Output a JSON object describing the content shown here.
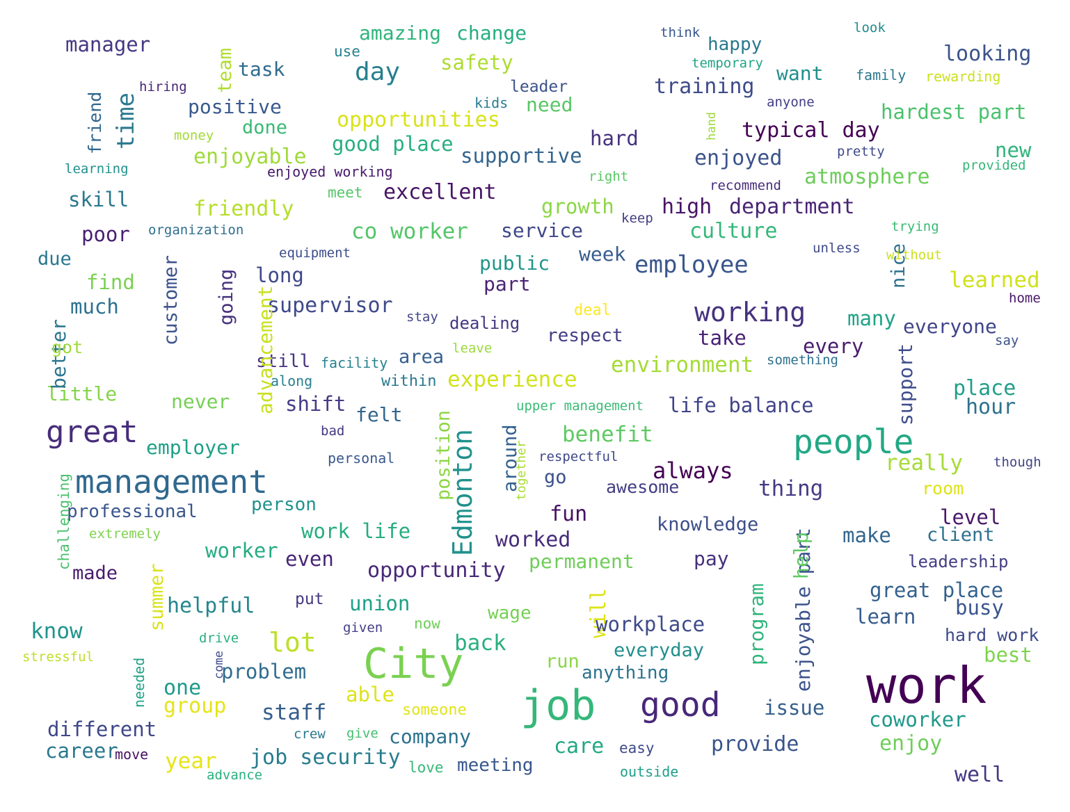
{
  "words": [
    {
      "text": "work",
      "color": "#440154"
    },
    {
      "text": "job",
      "color": "#35b779"
    },
    {
      "text": "City",
      "color": "#7ad151"
    },
    {
      "text": "good",
      "color": "#482878"
    },
    {
      "text": "people",
      "color": "#22a884"
    },
    {
      "text": "management",
      "color": "#31688e"
    },
    {
      "text": "great",
      "color": "#472d7b"
    },
    {
      "text": "Edmonton",
      "color": "#21918c"
    },
    {
      "text": "working",
      "color": "#46327e"
    },
    {
      "text": "employee",
      "color": "#39568c"
    },
    {
      "text": "lot",
      "color": "#bddf26"
    },
    {
      "text": "day",
      "color": "#277f8e"
    },
    {
      "text": "time",
      "color": "#2a788e"
    },
    {
      "text": "always",
      "color": "#440154"
    },
    {
      "text": "experience",
      "color": "#d2e21b"
    },
    {
      "text": "environment",
      "color": "#a5db36"
    },
    {
      "text": "supervisor",
      "color": "#3e4989"
    },
    {
      "text": "benefit",
      "color": "#5ec962"
    },
    {
      "text": "co worker",
      "color": "#54c568"
    },
    {
      "text": "opportunity",
      "color": "#482878"
    },
    {
      "text": "enjoyable part",
      "color": "#3b528b"
    },
    {
      "text": "amazing",
      "color": "#2fb47c"
    },
    {
      "text": "change",
      "color": "#26ad81"
    },
    {
      "text": "safety",
      "color": "#addc30"
    },
    {
      "text": "manager",
      "color": "#443983"
    },
    {
      "text": "opportunities",
      "color": "#d8e219"
    },
    {
      "text": "good place",
      "color": "#28ae80"
    },
    {
      "text": "training",
      "color": "#3e4a89"
    },
    {
      "text": "typical day",
      "color": "#440154"
    },
    {
      "text": "hardest part",
      "color": "#4ac16d"
    },
    {
      "text": "looking",
      "color": "#3b528b"
    },
    {
      "text": "atmosphere",
      "color": "#6ccd5a"
    },
    {
      "text": "learned",
      "color": "#d0e11c"
    },
    {
      "text": "high",
      "color": "#481467"
    },
    {
      "text": "department",
      "color": "#482475"
    },
    {
      "text": "culture",
      "color": "#35b779"
    },
    {
      "text": "excellent",
      "color": "#471365"
    },
    {
      "text": "friendly",
      "color": "#b5de2b"
    },
    {
      "text": "enjoyable",
      "color": "#9fda3a"
    },
    {
      "text": "positive",
      "color": "#38598c"
    },
    {
      "text": "supportive",
      "color": "#32648e"
    },
    {
      "text": "enjoyed",
      "color": "#3b528b"
    },
    {
      "text": "public",
      "color": "#1f958b"
    },
    {
      "text": "service",
      "color": "#3f4788"
    },
    {
      "text": "skill",
      "color": "#2a768e"
    },
    {
      "text": "life balance",
      "color": "#414487"
    },
    {
      "text": "place",
      "color": "#1f9e89"
    },
    {
      "text": "hour",
      "color": "#2c728e"
    },
    {
      "text": "support",
      "color": "#3e4c8a"
    },
    {
      "text": "many",
      "color": "#20a386"
    },
    {
      "text": "everyone",
      "color": "#404588"
    },
    {
      "text": "every",
      "color": "#481d6f"
    },
    {
      "text": "take",
      "color": "#482173"
    },
    {
      "text": "respect",
      "color": "#433e85"
    },
    {
      "text": "dealing",
      "color": "#453882"
    },
    {
      "text": "area",
      "color": "#355f8d"
    },
    {
      "text": "felt",
      "color": "#31668e"
    },
    {
      "text": "shift",
      "color": "#443b84"
    },
    {
      "text": "still",
      "color": "#463480"
    },
    {
      "text": "long",
      "color": "#3f4889"
    },
    {
      "text": "advancement",
      "color": "#c8e020"
    },
    {
      "text": "going",
      "color": "#46307e"
    },
    {
      "text": "customer",
      "color": "#3b528b"
    },
    {
      "text": "nice",
      "color": "#2d708e"
    },
    {
      "text": "really",
      "color": "#a5db36"
    },
    {
      "text": "thing",
      "color": "#443a83"
    },
    {
      "text": "awesome",
      "color": "#433d84"
    },
    {
      "text": "knowledge",
      "color": "#3d4e8a"
    },
    {
      "text": "fun",
      "color": "#471063"
    },
    {
      "text": "go",
      "color": "#3c508b"
    },
    {
      "text": "worked",
      "color": "#472c7a"
    },
    {
      "text": "permanent",
      "color": "#6ece58"
    },
    {
      "text": "pay",
      "color": "#46307e"
    },
    {
      "text": "help",
      "color": "#5ec962"
    },
    {
      "text": "make",
      "color": "#32658e"
    },
    {
      "text": "level",
      "color": "#481769"
    },
    {
      "text": "client",
      "color": "#2d708e"
    },
    {
      "text": "leadership",
      "color": "#433e85"
    },
    {
      "text": "great place",
      "color": "#34618d"
    },
    {
      "text": "busy",
      "color": "#3a548c"
    },
    {
      "text": "learn",
      "color": "#365c8d"
    },
    {
      "text": "hard work",
      "color": "#3e4a89"
    },
    {
      "text": "best",
      "color": "#7fd34e"
    },
    {
      "text": "coworker",
      "color": "#1f988b"
    },
    {
      "text": "enjoy",
      "color": "#6ece58"
    },
    {
      "text": "well",
      "color": "#443983"
    },
    {
      "text": "issue",
      "color": "#355f8d"
    },
    {
      "text": "provide",
      "color": "#39558c"
    },
    {
      "text": "program",
      "color": "#2fb47c"
    },
    {
      "text": "will",
      "color": "#dde318"
    },
    {
      "text": "workplace",
      "color": "#3e4a89"
    },
    {
      "text": "everyday",
      "color": "#218f8d"
    },
    {
      "text": "anything",
      "color": "#2c738e"
    },
    {
      "text": "run",
      "color": "#8bd646"
    },
    {
      "text": "care",
      "color": "#22a884"
    },
    {
      "text": "easy",
      "color": "#3e4a89"
    },
    {
      "text": "outside",
      "color": "#1fa088"
    },
    {
      "text": "meeting",
      "color": "#39568c"
    },
    {
      "text": "company",
      "color": "#2c728e"
    },
    {
      "text": "job security",
      "color": "#287c8e"
    },
    {
      "text": "staff",
      "color": "#355e8d"
    },
    {
      "text": "able",
      "color": "#dde318"
    },
    {
      "text": "someone",
      "color": "#e2e418"
    },
    {
      "text": "union",
      "color": "#1fa187"
    },
    {
      "text": "wage",
      "color": "#75d054"
    },
    {
      "text": "back",
      "color": "#29af7f"
    },
    {
      "text": "problem",
      "color": "#2f6c8e"
    },
    {
      "text": "one",
      "color": "#1f9a8a"
    },
    {
      "text": "group",
      "color": "#e5e419"
    },
    {
      "text": "different",
      "color": "#3f4788"
    },
    {
      "text": "career",
      "color": "#2a788e"
    },
    {
      "text": "move",
      "color": "#471365"
    },
    {
      "text": "year",
      "color": "#e7e419"
    },
    {
      "text": "advance",
      "color": "#2ab07f"
    },
    {
      "text": "love",
      "color": "#37b878"
    },
    {
      "text": "crew",
      "color": "#2a788e"
    },
    {
      "text": "give",
      "color": "#45bf70"
    },
    {
      "text": "know",
      "color": "#1f948c"
    },
    {
      "text": "helpful",
      "color": "#24868e"
    },
    {
      "text": "summer",
      "color": "#dae319"
    },
    {
      "text": "made",
      "color": "#481b6d"
    },
    {
      "text": "worker",
      "color": "#25ac82"
    },
    {
      "text": "even",
      "color": "#482576"
    },
    {
      "text": "work life",
      "color": "#27ad81"
    },
    {
      "text": "person",
      "color": "#20928c"
    },
    {
      "text": "professional",
      "color": "#39568c"
    },
    {
      "text": "extremely",
      "color": "#7fd34e"
    },
    {
      "text": "challenging",
      "color": "#4ac16d"
    },
    {
      "text": "employer",
      "color": "#1fa088"
    },
    {
      "text": "position",
      "color": "#8ed645"
    },
    {
      "text": "around",
      "color": "#34618d"
    },
    {
      "text": "together",
      "color": "#aadc32"
    },
    {
      "text": "personal",
      "color": "#38588c"
    },
    {
      "text": "bad",
      "color": "#453781"
    },
    {
      "text": "respectful",
      "color": "#3f4788"
    },
    {
      "text": "never",
      "color": "#75d054"
    },
    {
      "text": "little",
      "color": "#84d44b"
    },
    {
      "text": "better",
      "color": "#2a768e"
    },
    {
      "text": "got",
      "color": "#a0da39"
    },
    {
      "text": "much",
      "color": "#2c718e"
    },
    {
      "text": "find",
      "color": "#7ad151"
    },
    {
      "text": "due",
      "color": "#2a778e"
    },
    {
      "text": "poor",
      "color": "#481f70"
    },
    {
      "text": "along",
      "color": "#27808e"
    },
    {
      "text": "facility",
      "color": "#26828e"
    },
    {
      "text": "within",
      "color": "#2a788e"
    },
    {
      "text": "upper management",
      "color": "#3bbb75"
    },
    {
      "text": "deal",
      "color": "#fde725"
    },
    {
      "text": "leave",
      "color": "#9bd93c"
    },
    {
      "text": "stay",
      "color": "#404688"
    },
    {
      "text": "equipment",
      "color": "#3d4d8a"
    },
    {
      "text": "organization",
      "color": "#2e6e8e"
    },
    {
      "text": "meet",
      "color": "#54c568"
    },
    {
      "text": "enjoyed working",
      "color": "#481a6c"
    },
    {
      "text": "learning",
      "color": "#21918c"
    },
    {
      "text": "money",
      "color": "#a2da37"
    },
    {
      "text": "friend",
      "color": "#31668e"
    },
    {
      "text": "hiring",
      "color": "#482576"
    },
    {
      "text": "team",
      "color": "#b0dd2f"
    },
    {
      "text": "task",
      "color": "#2f6b8e"
    },
    {
      "text": "use",
      "color": "#26818e"
    },
    {
      "text": "done",
      "color": "#3aba76"
    },
    {
      "text": "leader",
      "color": "#3b528b"
    },
    {
      "text": "kids",
      "color": "#287d8e"
    },
    {
      "text": "need",
      "color": "#58c765"
    },
    {
      "text": "hard",
      "color": "#46327e"
    },
    {
      "text": "growth",
      "color": "#8bd646"
    },
    {
      "text": "part",
      "color": "#482475"
    },
    {
      "text": "week",
      "color": "#365d8d"
    },
    {
      "text": "right",
      "color": "#58c765"
    },
    {
      "text": "keep",
      "color": "#433e85"
    },
    {
      "text": "recommend",
      "color": "#472d7b"
    },
    {
      "text": "think",
      "color": "#38588c"
    },
    {
      "text": "happy",
      "color": "#2a788e"
    },
    {
      "text": "temporary",
      "color": "#20a486"
    },
    {
      "text": "want",
      "color": "#218e8d"
    },
    {
      "text": "anyone",
      "color": "#433e85"
    },
    {
      "text": "hand",
      "color": "#9dd93b"
    },
    {
      "text": "pretty",
      "color": "#3e4a89"
    },
    {
      "text": "look",
      "color": "#228c8d"
    },
    {
      "text": "family",
      "color": "#2a788e"
    },
    {
      "text": "rewarding",
      "color": "#cae11f"
    },
    {
      "text": "new",
      "color": "#2fb47c"
    },
    {
      "text": "provided",
      "color": "#35b779"
    },
    {
      "text": "trying",
      "color": "#3bbb75"
    },
    {
      "text": "unless",
      "color": "#3e4a89"
    },
    {
      "text": "without",
      "color": "#cae11f"
    },
    {
      "text": "home",
      "color": "#481769"
    },
    {
      "text": "say",
      "color": "#3b528b"
    },
    {
      "text": "something",
      "color": "#2d708e"
    },
    {
      "text": "though",
      "color": "#414487"
    },
    {
      "text": "room",
      "color": "#dde318"
    },
    {
      "text": "stressful",
      "color": "#bddf26"
    },
    {
      "text": "drive",
      "color": "#2ab07f"
    },
    {
      "text": "come",
      "color": "#3e4a89"
    },
    {
      "text": "needed",
      "color": "#1fa187"
    },
    {
      "text": "given",
      "color": "#433e85"
    },
    {
      "text": "now",
      "color": "#6ece58"
    },
    {
      "text": "put",
      "color": "#443983"
    }
  ]
}
